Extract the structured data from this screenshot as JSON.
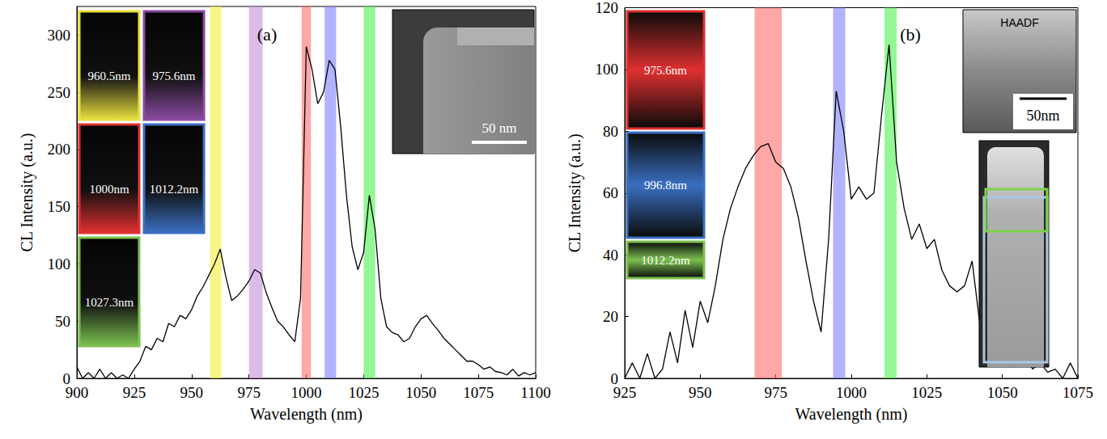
{
  "chart_data": [
    {
      "type": "line",
      "panel": "(a)",
      "xlabel": "Wavelength (nm)",
      "ylabel": "CL Intensity (a.u.)",
      "x": [
        900,
        902.5,
        905,
        907.5,
        910,
        912.5,
        915,
        917.5,
        920,
        922.5,
        925,
        927.5,
        930,
        932.5,
        935,
        937.5,
        940,
        942.5,
        945,
        947.5,
        950,
        952.5,
        955,
        957.5,
        960,
        962.5,
        965,
        967.5,
        970,
        972.5,
        975,
        977.5,
        980,
        982.5,
        985,
        987.5,
        990,
        992.5,
        995,
        997.5,
        1000,
        1002.5,
        1005,
        1007.5,
        1010,
        1012.5,
        1015,
        1017.5,
        1020,
        1022.5,
        1025,
        1027.5,
        1030,
        1032.5,
        1035,
        1037.5,
        1040,
        1042.5,
        1045,
        1047.5,
        1050,
        1052.5,
        1055,
        1057.5,
        1060,
        1062.5,
        1065,
        1067.5,
        1070,
        1072.5,
        1075,
        1077.5,
        1080,
        1082.5,
        1085,
        1087.5,
        1090,
        1092.5,
        1095,
        1097.5,
        1100
      ],
      "values": [
        10,
        0,
        5,
        0,
        8,
        0,
        5,
        0,
        3,
        0,
        8,
        15,
        28,
        25,
        35,
        32,
        48,
        45,
        55,
        52,
        60,
        72,
        80,
        90,
        100,
        113,
        88,
        68,
        72,
        78,
        85,
        95,
        92,
        75,
        62,
        50,
        45,
        38,
        32,
        70,
        290,
        270,
        240,
        250,
        278,
        270,
        220,
        160,
        115,
        95,
        110,
        160,
        130,
        70,
        45,
        40,
        38,
        32,
        35,
        45,
        52,
        55,
        48,
        42,
        35,
        30,
        25,
        20,
        15,
        15,
        12,
        8,
        10,
        6,
        5,
        3,
        8,
        2,
        5,
        3,
        5
      ],
      "color": "#000000",
      "xlim": [
        900,
        1100
      ],
      "xticks": [
        900,
        925,
        950,
        975,
        1000,
        1025,
        1050,
        1075,
        1100
      ],
      "ylim": [
        0,
        325
      ],
      "yticks": [
        0,
        50,
        100,
        150,
        200,
        250,
        300
      ],
      "grid": false,
      "highlights": [
        {
          "from": 958,
          "to": 963,
          "color": "#f5f03a"
        },
        {
          "from": 975,
          "to": 981,
          "color": "#c58fd6"
        },
        {
          "from": 998,
          "to": 1002,
          "color": "#ff6a6a"
        },
        {
          "from": 1008,
          "to": 1013,
          "color": "#7f7fff"
        },
        {
          "from": 1025,
          "to": 1030,
          "color": "#4ff04f"
        }
      ],
      "insets": [
        {
          "label": "960.5nm",
          "color": "#e8e040"
        },
        {
          "label": "975.6nm",
          "color": "#8a4aa0"
        },
        {
          "label": "1000nm",
          "color": "#e03030"
        },
        {
          "label": "1012.2nm",
          "color": "#3a6fc0"
        },
        {
          "label": "1027.3nm",
          "color": "#7cc050"
        }
      ],
      "micrograph": {
        "scale": "50 nm"
      }
    },
    {
      "type": "line",
      "panel": "(b)",
      "xlabel": "Wavelength (nm)",
      "ylabel": "CL Intensity (a.u.)",
      "x": [
        925,
        927.5,
        930,
        932.5,
        935,
        937.5,
        940,
        942.5,
        945,
        947.5,
        950,
        952.5,
        955,
        957.5,
        960,
        962.5,
        965,
        967.5,
        970,
        972.5,
        975,
        977.5,
        980,
        982.5,
        985,
        987.5,
        990,
        992.5,
        995,
        997.5,
        1000,
        1002.5,
        1005,
        1007.5,
        1010,
        1012.5,
        1015,
        1017.5,
        1020,
        1022.5,
        1025,
        1027.5,
        1030,
        1032.5,
        1035,
        1037.5,
        1040,
        1042.5,
        1045,
        1047.5,
        1050,
        1052.5,
        1055,
        1057.5,
        1060,
        1062.5,
        1065,
        1067.5,
        1070,
        1072.5,
        1075
      ],
      "values": [
        0,
        5,
        0,
        8,
        0,
        3,
        15,
        5,
        22,
        10,
        25,
        18,
        30,
        45,
        55,
        62,
        68,
        72,
        75,
        76,
        70,
        68,
        62,
        52,
        38,
        25,
        15,
        45,
        93,
        80,
        58,
        62,
        58,
        60,
        85,
        108,
        70,
        55,
        45,
        50,
        42,
        45,
        35,
        30,
        28,
        30,
        38,
        18,
        12,
        15,
        8,
        10,
        5,
        8,
        3,
        5,
        2,
        3,
        0,
        5,
        0
      ],
      "color": "#000000",
      "xlim": [
        925,
        1075
      ],
      "xticks": [
        925,
        950,
        975,
        1000,
        1025,
        1050,
        1075
      ],
      "ylim": [
        0,
        120
      ],
      "yticks": [
        0,
        20,
        40,
        60,
        80,
        100,
        120
      ],
      "grid": false,
      "highlights": [
        {
          "from": 968,
          "to": 977,
          "color": "#ff6a6a"
        },
        {
          "from": 994,
          "to": 998,
          "color": "#7f7fff"
        },
        {
          "from": 1011,
          "to": 1015,
          "color": "#4ff04f"
        }
      ],
      "insets": [
        {
          "label": "975.6nm",
          "color": "#e03030"
        },
        {
          "label": "996.8nm",
          "color": "#3a6fc0"
        },
        {
          "label": "1012.2nm",
          "color": "#7cc050"
        }
      ],
      "micrograph": {
        "title": "HAADF",
        "scale": "50nm",
        "region_colors": [
          "#7cd24a",
          "#a8c8e8"
        ]
      }
    }
  ]
}
